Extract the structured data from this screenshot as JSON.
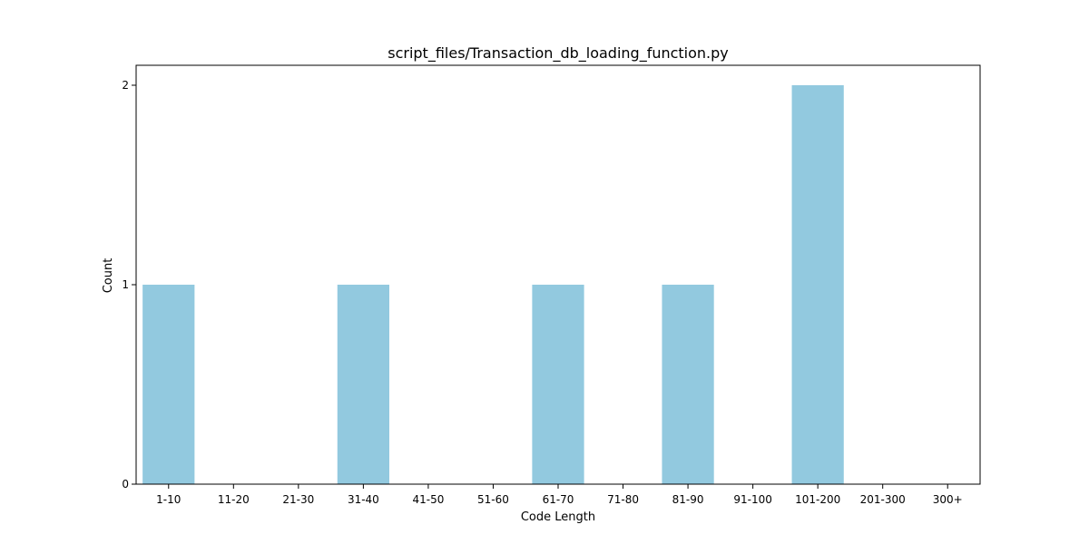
{
  "chart_data": {
    "type": "bar",
    "title": "script_files/Transaction_db_loading_function.py",
    "xlabel": "Code Length",
    "ylabel": "Count",
    "categories": [
      "1-10",
      "11-20",
      "21-30",
      "31-40",
      "41-50",
      "51-60",
      "61-70",
      "71-80",
      "81-90",
      "91-100",
      "101-200",
      "201-300",
      "300+"
    ],
    "values": [
      1,
      0,
      0,
      1,
      0,
      0,
      1,
      0,
      1,
      0,
      2,
      0,
      0
    ],
    "yticks": [
      0,
      1,
      2
    ],
    "ylim": [
      0,
      2.1
    ],
    "bar_color": "#92c9df",
    "grid": false,
    "legend": false
  }
}
